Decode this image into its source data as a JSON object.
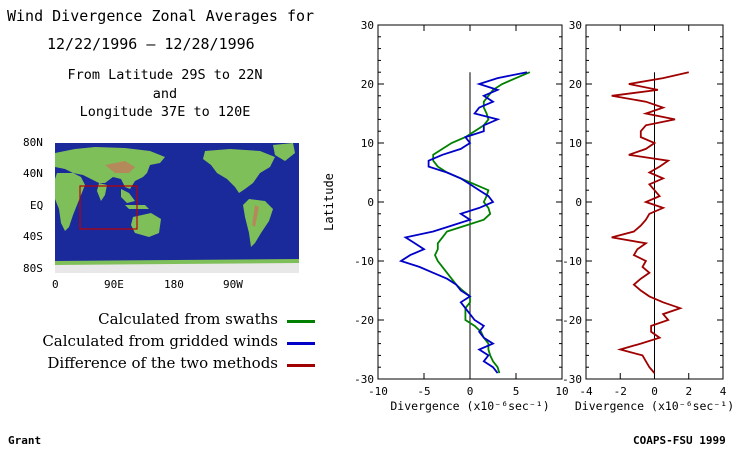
{
  "header": {
    "title": "Wind Divergence Zonal Averages for",
    "date_range": "12/22/1996 – 12/28/1996",
    "region_line1": "From Latitude 29S to 22N",
    "region_line2": "and",
    "region_line3": "Longitude 37E to 120E"
  },
  "map": {
    "lat_labels": [
      "80N",
      "40N",
      "EQ",
      "40S",
      "80S"
    ],
    "lon_labels": [
      "0",
      "90E",
      "180",
      "90W"
    ],
    "colors": {
      "ocean": "#1a2a9a",
      "land": "#7fbf5a",
      "box": "#c00000"
    }
  },
  "legend": {
    "items": [
      {
        "label": "Calculated from swaths",
        "color": "#008000"
      },
      {
        "label": "Calculated from gridded winds",
        "color": "#0000c8"
      },
      {
        "label": "Difference of the two methods",
        "color": "#a00000"
      }
    ]
  },
  "footer": {
    "left": "Grant",
    "right": "COAPS-FSU 1999"
  },
  "chart_data": [
    {
      "type": "line",
      "ylabel": "Latitude",
      "xlabel": "Divergence (x10⁻⁶sec⁻¹)",
      "xlim": [
        -10,
        10
      ],
      "ylim": [
        -30,
        30
      ],
      "xticks": [
        -10,
        -5,
        0,
        5,
        10
      ],
      "yticks": [
        -30,
        -20,
        -10,
        0,
        10,
        20,
        30
      ],
      "zero_line": true,
      "series": [
        {
          "name": "Calculated from swaths",
          "color": "#008000",
          "lat": [
            22,
            21,
            20,
            19,
            18,
            17,
            16,
            15,
            14,
            13,
            12,
            11,
            10,
            9,
            8,
            7,
            6,
            5,
            4,
            3,
            2,
            1,
            0,
            -1,
            -2,
            -3,
            -4,
            -5,
            -6,
            -7,
            -8,
            -9,
            -10,
            -11,
            -12,
            -13,
            -14,
            -15,
            -16,
            -17,
            -18,
            -19,
            -20,
            -21,
            -22,
            -23,
            -24,
            -25,
            -26,
            -27,
            -28,
            -29
          ],
          "div": [
            6.5,
            5,
            3.5,
            2.5,
            2,
            1.5,
            1.5,
            1.8,
            2,
            1.5,
            0.5,
            -0.5,
            -2,
            -3,
            -4,
            -4,
            -3.5,
            -2.5,
            -1,
            0.5,
            2,
            1.8,
            1.5,
            2,
            2.2,
            1.5,
            -0.5,
            -2.5,
            -3,
            -3.5,
            -3.5,
            -3.8,
            -3.5,
            -3,
            -2.5,
            -2,
            -1.5,
            -0.8,
            0,
            0,
            -0.5,
            -0.5,
            -0.5,
            0.5,
            1.2,
            1.5,
            2,
            2,
            2.2,
            2.5,
            3,
            3.2
          ]
        },
        {
          "name": "Calculated from gridded winds",
          "color": "#0000c8",
          "lat": [
            22,
            21,
            20,
            19,
            18,
            17,
            16,
            15,
            14,
            13,
            12,
            11,
            10,
            9,
            8,
            7,
            6,
            5,
            4,
            3,
            2,
            1,
            0,
            -1,
            -2,
            -3,
            -4,
            -5,
            -6,
            -7,
            -8,
            -9,
            -10,
            -11,
            -12,
            -13,
            -14,
            -15,
            -16,
            -17,
            -18,
            -19,
            -20,
            -21,
            -22,
            -23,
            -24,
            -25,
            -26,
            -27,
            -28,
            -29
          ],
          "div": [
            6.2,
            3,
            1,
            3,
            1.5,
            2.5,
            1,
            0.5,
            3,
            1.5,
            1.5,
            -0.5,
            0,
            -1,
            -3,
            -4.5,
            -4.5,
            -2.5,
            -1,
            0,
            1,
            2,
            2.5,
            1,
            -1,
            0,
            -2,
            -4,
            -7,
            -6,
            -5,
            -6.5,
            -7.5,
            -5.5,
            -4,
            -2.5,
            -1.5,
            -1,
            0,
            -1,
            -0.5,
            0,
            0.5,
            1.5,
            1,
            1.5,
            2.5,
            1,
            2,
            1.5,
            2.5,
            3
          ]
        }
      ]
    },
    {
      "type": "line",
      "xlabel": "Divergence (x10⁻⁶sec⁻¹)",
      "xlim": [
        -4,
        4
      ],
      "ylim": [
        -30,
        30
      ],
      "xticks": [
        -4,
        -2,
        0,
        2,
        4
      ],
      "yticks": [
        -30,
        -20,
        -10,
        0,
        10,
        20,
        30
      ],
      "zero_line": true,
      "series": [
        {
          "name": "Difference of the two methods",
          "color": "#a00000",
          "lat": [
            22,
            21,
            20,
            19,
            18,
            17,
            16,
            15,
            14,
            13,
            12,
            11,
            10,
            9,
            8,
            7,
            6,
            5,
            4,
            3,
            2,
            1,
            0,
            -1,
            -2,
            -3,
            -4,
            -5,
            -6,
            -7,
            -8,
            -9,
            -10,
            -11,
            -12,
            -13,
            -14,
            -15,
            -16,
            -17,
            -18,
            -19,
            -20,
            -21,
            -22,
            -23,
            -24,
            -25,
            -26,
            -27,
            -28,
            -29
          ],
          "div": [
            2,
            0.5,
            -1.5,
            0.2,
            -2.5,
            -0.5,
            0.5,
            -0.5,
            1.2,
            -0.5,
            -0.8,
            -0.8,
            0,
            -0.5,
            -1.5,
            0.8,
            0.3,
            -0.3,
            0.5,
            -0.3,
            0,
            0.3,
            -0.5,
            0.5,
            -0.3,
            -0.5,
            -0.8,
            -1.2,
            -2.5,
            -0.5,
            -1,
            -1.2,
            -0.5,
            -0.7,
            -0.3,
            -0.8,
            -1.2,
            -0.8,
            -0.3,
            0.5,
            1.5,
            0.5,
            0.8,
            -0.2,
            -0.2,
            0.3,
            -0.8,
            -2,
            -0.7,
            -0.5,
            -0.3,
            0
          ]
        }
      ]
    }
  ]
}
